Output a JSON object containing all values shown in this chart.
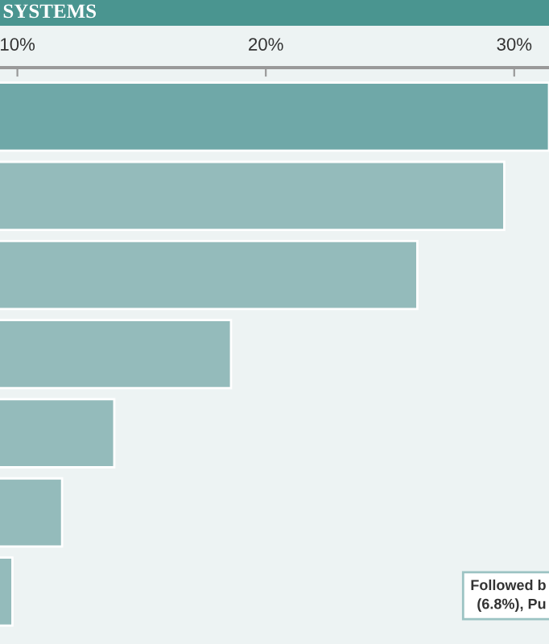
{
  "chart_data": {
    "type": "bar",
    "orientation": "horizontal",
    "title": "SYSTEMS",
    "categories": [
      null,
      null,
      null,
      null,
      null,
      null,
      null
    ],
    "colors": [
      "#6fa8a8",
      "#94bbbb",
      "#94bbbb",
      "#94bbbb",
      "#94bbbb",
      "#94bbbb",
      "#94bbbb"
    ],
    "values": [
      31.4,
      29.6,
      26.1,
      18.6,
      13.9,
      11.8,
      9.8
    ],
    "xlim": [
      9.3,
      31.4
    ],
    "xticks": [
      {
        "value": 10,
        "label": "10%"
      },
      {
        "value": 20,
        "label": "20%"
      },
      {
        "value": 30,
        "label": "30%"
      }
    ],
    "tick_labels": "x",
    "grid": false,
    "annotations": [
      "Followed b\n(6.8%), Pu"
    ]
  }
}
